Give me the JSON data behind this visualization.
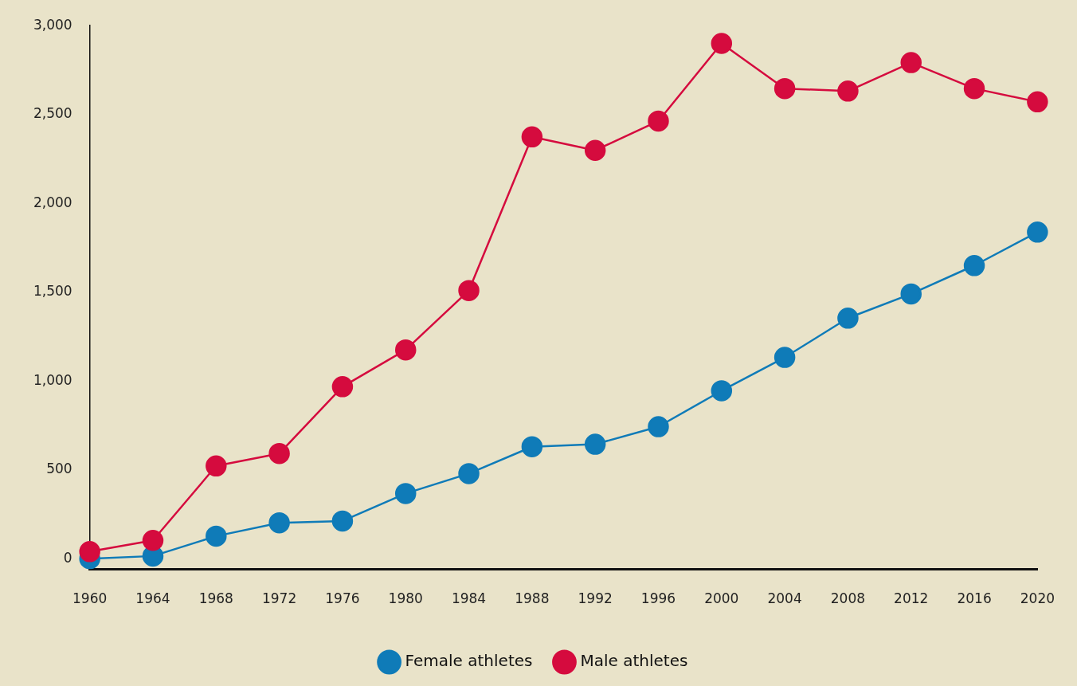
{
  "chart_data": {
    "type": "line",
    "categories": [
      "1960",
      "1964",
      "1968",
      "1972",
      "1976",
      "1980",
      "1984",
      "1988",
      "1992",
      "1996",
      "2000",
      "2004",
      "2008",
      "2012",
      "2016",
      "2020"
    ],
    "series": [
      {
        "name": "Female athletes",
        "color": "#0f7bb8",
        "values": [
          0,
          15,
          127,
          202,
          212,
          367,
          479,
          630,
          644,
          743,
          945,
          1133,
          1354,
          1490,
          1650,
          1838
        ]
      },
      {
        "name": "Male athletes",
        "color": "#d50b3e",
        "values": [
          40,
          103,
          522,
          592,
          968,
          1175,
          1509,
          2374,
          2298,
          2463,
          2900,
          2646,
          2632,
          2792,
          2646,
          2571
        ]
      }
    ],
    "ylim": [
      -60,
      3000
    ],
    "yticks": [
      0,
      500,
      {
        "value": 1000,
        "label": "1,000"
      },
      {
        "value": 1500,
        "label": "1,500"
      },
      {
        "value": 2000,
        "label": "2,000"
      },
      {
        "value": 2500,
        "label": "2,500"
      },
      {
        "value": 3000,
        "label": "3,000"
      }
    ],
    "grid": false,
    "legend": "bottom",
    "marker": "circle",
    "line_style": "solid"
  }
}
